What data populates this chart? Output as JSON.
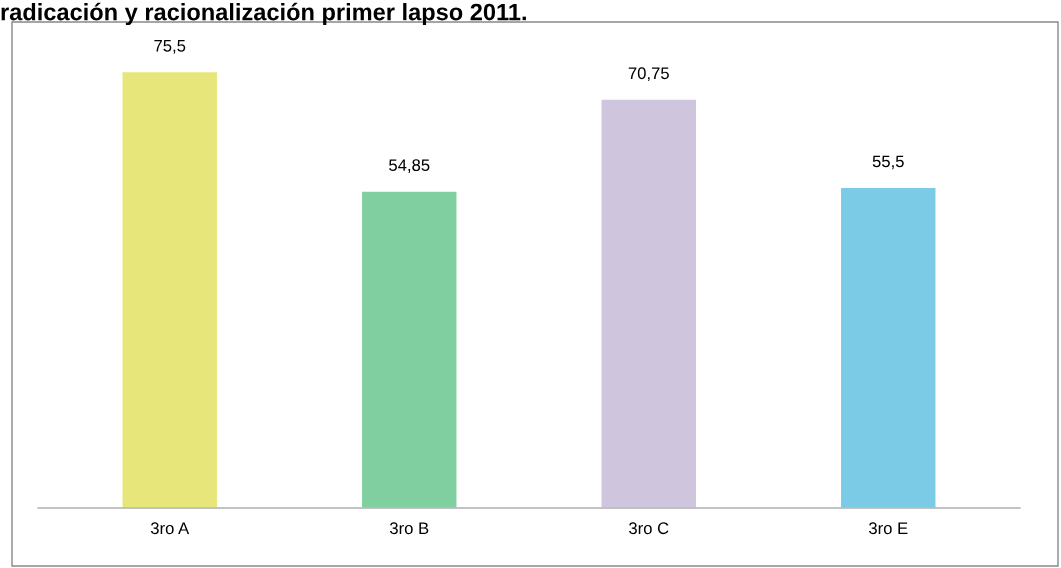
{
  "chart_data": {
    "type": "bar",
    "title": "radicación y racionalización primer lapso 2011.",
    "categories": [
      "3ro A",
      "3ro B",
      "3ro C",
      "3ro E"
    ],
    "values": [
      75.5,
      54.85,
      70.75,
      55.5
    ],
    "value_labels": [
      "75,5",
      "54,85",
      "70,75",
      "55,5"
    ],
    "colors": [
      "#e6e67a",
      "#7fcfa0",
      "#cfc5dc",
      "#7ccbe6"
    ],
    "grid": false,
    "legend": false
  }
}
